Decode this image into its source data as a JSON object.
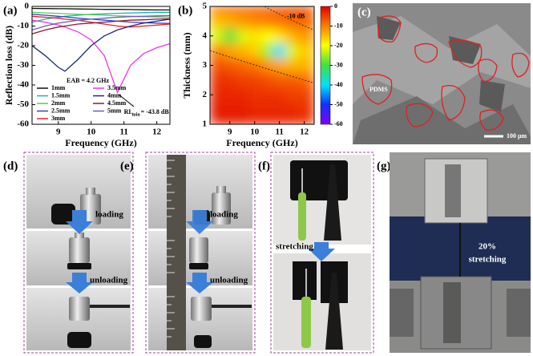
{
  "chart_data": [
    {
      "type": "line",
      "label": "(a)",
      "xlabel": "Frequency (GHz)",
      "ylabel": "Reflection loss (dB)",
      "x": [
        8.2,
        8.6,
        9.0,
        9.2,
        9.6,
        10.0,
        10.4,
        10.8,
        11.2,
        11.6,
        12.0,
        12.4
      ],
      "xlim": [
        8.2,
        12.4
      ],
      "xticks": [
        9,
        10,
        11,
        12
      ],
      "ylim": [
        -60,
        0
      ],
      "yticks": [
        0,
        -10,
        -20,
        -30,
        -40,
        -50,
        -60
      ],
      "series": [
        {
          "name": "1mm",
          "color": "#111111",
          "values": [
            -1,
            -1.1,
            -1.2,
            -1.2,
            -1.3,
            -1.4,
            -1.5,
            -1.5,
            -1.6,
            -1.7,
            -1.8,
            -1.8
          ]
        },
        {
          "name": "1.5mm",
          "color": "#19b3b3",
          "values": [
            -8,
            -6.5,
            -5.5,
            -5,
            -4.5,
            -4,
            -3.8,
            -3.5,
            -3.3,
            -3.2,
            -3,
            -3
          ]
        },
        {
          "name": "2mm",
          "color": "#55d044",
          "values": [
            -3,
            -3.3,
            -3.5,
            -3.7,
            -4,
            -4.2,
            -4.5,
            -4.8,
            -5,
            -5.2,
            -5.4,
            -5.5
          ]
        },
        {
          "name": "2.5mm",
          "color": "#3344cc",
          "values": [
            -4,
            -4.5,
            -5,
            -5.3,
            -6,
            -6.5,
            -7,
            -7.5,
            -8,
            -8.3,
            -8.5,
            -8.7
          ]
        },
        {
          "name": "3mm",
          "color": "#e82222",
          "values": [
            -5,
            -5.5,
            -6,
            -6.5,
            -7,
            -8,
            -9,
            -10,
            -10.5,
            -10,
            -9.5,
            -9
          ]
        },
        {
          "name": "3.5mm",
          "color": "#ee33ee",
          "values": [
            -7,
            -8,
            -9.5,
            -10.5,
            -13,
            -17,
            -25,
            -43.8,
            -30,
            -24,
            -21,
            -19
          ]
        },
        {
          "name": "4mm",
          "color": "#1a2a7a",
          "values": [
            -20,
            -25,
            -31,
            -33,
            -27,
            -20,
            -15,
            -12,
            -10,
            -8.5,
            -7.5,
            -6.5
          ]
        },
        {
          "name": "4.5mm",
          "color": "#8b1a2a",
          "values": [
            -14,
            -12,
            -10.5,
            -10,
            -9,
            -8.5,
            -8,
            -7.5,
            -7,
            -6.8,
            -6.5,
            -6.3
          ]
        },
        {
          "name": "5mm",
          "color": "#6a5acd",
          "values": [
            -12,
            -10,
            -8.5,
            -8,
            -7,
            -6.5,
            -6,
            -5.5,
            -5.2,
            -5,
            -4.8,
            -4.7
          ]
        }
      ],
      "annotations": [
        "EAB = 4.2 GHz",
        "RL",
        "min",
        " = -43.8 dB"
      ]
    },
    {
      "type": "heatmap",
      "label": "(b)",
      "xlabel": "Frequency (GHz)",
      "ylabel": "Thickness (mm)",
      "x": [
        8.5,
        9.0,
        9.5,
        10.0,
        10.5,
        11.0,
        11.5,
        12.0
      ],
      "y": [
        1.5,
        2.0,
        2.5,
        3.0,
        3.5,
        4.0,
        4.5,
        5.0
      ],
      "xlim": [
        8.2,
        12.4
      ],
      "xticks": [
        9,
        10,
        11,
        12
      ],
      "ylim": [
        1,
        5
      ],
      "yticks": [
        1,
        2,
        3,
        4,
        5
      ],
      "z": [
        [
          -2,
          -2,
          -2,
          -3,
          -3,
          -3,
          -3,
          -4
        ],
        [
          -3,
          -3,
          -3,
          -4,
          -4,
          -4,
          -5,
          -5
        ],
        [
          -4,
          -4,
          -5,
          -5,
          -6,
          -7,
          -7,
          -8
        ],
        [
          -6,
          -7,
          -8,
          -9,
          -11,
          -13,
          -14,
          -14
        ],
        [
          -10,
          -13,
          -14,
          -16,
          -25,
          -40,
          -22,
          -16
        ],
        [
          -22,
          -30,
          -22,
          -18,
          -20,
          -18,
          -14,
          -12
        ],
        [
          -15,
          -14,
          -12,
          -11,
          -10,
          -9,
          -8,
          -8
        ],
        [
          -9,
          -8,
          -8,
          -7,
          -7,
          -6,
          -6,
          -6
        ]
      ],
      "clim": [
        -60,
        0
      ],
      "cticks": [
        0,
        -10,
        -20,
        -30,
        -40,
        -50,
        -60
      ],
      "colormap": "jet",
      "annotation": "-10 dB"
    }
  ],
  "panels": {
    "c": {
      "label": "(c)",
      "material": "PDMS",
      "scale": "100 μm"
    },
    "d": {
      "label": "(d)",
      "step1": "loading",
      "step2": "unloading"
    },
    "e": {
      "label": "(e)",
      "step1": "loading",
      "step2": "unloading"
    },
    "f": {
      "label": "(f)",
      "step": "stretching"
    },
    "g": {
      "label": "(g)",
      "strain": "20%",
      "step": "stretching"
    }
  }
}
